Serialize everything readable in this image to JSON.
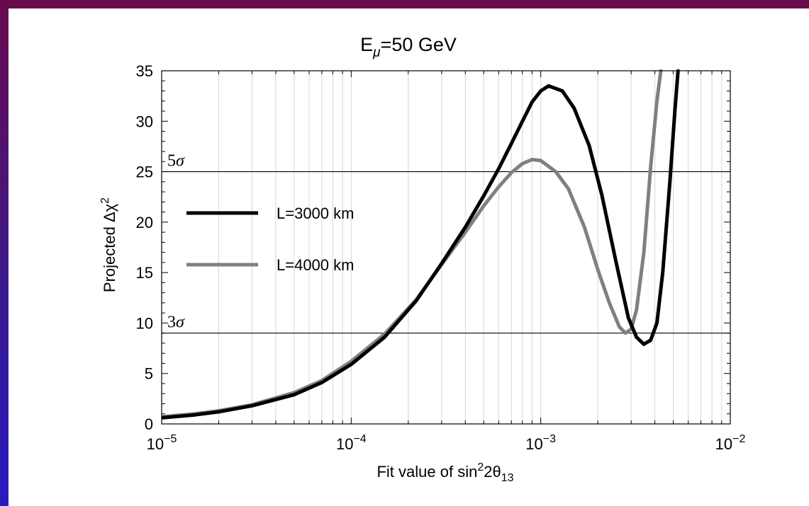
{
  "chart_data": {
    "type": "line",
    "title_base": "E",
    "title_sub": "μ",
    "title_rest": "=50 GeV",
    "xlabel": "Fit value of sin²2θ₁₃",
    "xlabel_parts": {
      "a": "Fit value of sin",
      "sup": "2",
      "b": "2θ",
      "sub": "13"
    },
    "ylabel": "Projected Δχ²",
    "ylabel_parts": {
      "a": "Projected Δχ",
      "sup": "2"
    },
    "xscale": "log",
    "xlim": [
      1e-05,
      0.01
    ],
    "ylim": [
      0,
      35
    ],
    "grid": "vertical minor lines",
    "x_ticks": [
      {
        "value": 1e-05,
        "base": "10",
        "exp": "−5"
      },
      {
        "value": 0.0001,
        "base": "10",
        "exp": "−4"
      },
      {
        "value": 0.001,
        "base": "10",
        "exp": "−3"
      },
      {
        "value": 0.01,
        "base": "10",
        "exp": "−2"
      }
    ],
    "y_ticks": [
      0,
      5,
      10,
      15,
      20,
      25,
      30,
      35
    ],
    "reference_lines": [
      {
        "y": 25,
        "label": "5σ"
      },
      {
        "y": 9,
        "label": "3σ"
      }
    ],
    "legend_position": "left-middle",
    "series": [
      {
        "name": "L=3000 km",
        "color": "#000000",
        "x": [
          1e-05,
          1.5e-05,
          2e-05,
          3e-05,
          5e-05,
          7e-05,
          0.0001,
          0.00015,
          0.00022,
          0.0003,
          0.0004,
          0.0005,
          0.0006,
          0.0007,
          0.0008,
          0.0009,
          0.001,
          0.0011,
          0.0013,
          0.0015,
          0.0018,
          0.0021,
          0.0025,
          0.0029,
          0.0032,
          0.0035,
          0.0038,
          0.0041,
          0.0044,
          0.0048,
          0.0051,
          0.0053
        ],
        "y": [
          0.6,
          0.9,
          1.2,
          1.8,
          2.9,
          4.1,
          5.9,
          8.6,
          12.2,
          15.9,
          19.5,
          22.6,
          25.3,
          27.8,
          30.0,
          31.9,
          33.0,
          33.5,
          33.0,
          31.3,
          27.6,
          22.7,
          16.0,
          10.5,
          8.6,
          7.9,
          8.3,
          10.0,
          15.0,
          24.0,
          31.0,
          35.0
        ]
      },
      {
        "name": "L=4000 km",
        "color": "#808080",
        "x": [
          1e-05,
          1.5e-05,
          2e-05,
          3e-05,
          5e-05,
          7e-05,
          0.0001,
          0.00015,
          0.00022,
          0.0003,
          0.0004,
          0.0005,
          0.0006,
          0.0007,
          0.0008,
          0.0009,
          0.001,
          0.0012,
          0.0014,
          0.0017,
          0.002,
          0.0023,
          0.0026,
          0.0028,
          0.003,
          0.0032,
          0.0035,
          0.0038,
          0.0041,
          0.0043
        ],
        "y": [
          0.7,
          1.0,
          1.3,
          1.9,
          3.1,
          4.3,
          6.2,
          8.9,
          12.3,
          15.8,
          19.0,
          21.6,
          23.5,
          24.9,
          25.8,
          26.2,
          26.1,
          25.0,
          23.3,
          19.5,
          15.3,
          12.0,
          9.6,
          9.0,
          9.4,
          11.3,
          17.0,
          25.5,
          32.0,
          35.0
        ]
      }
    ]
  }
}
